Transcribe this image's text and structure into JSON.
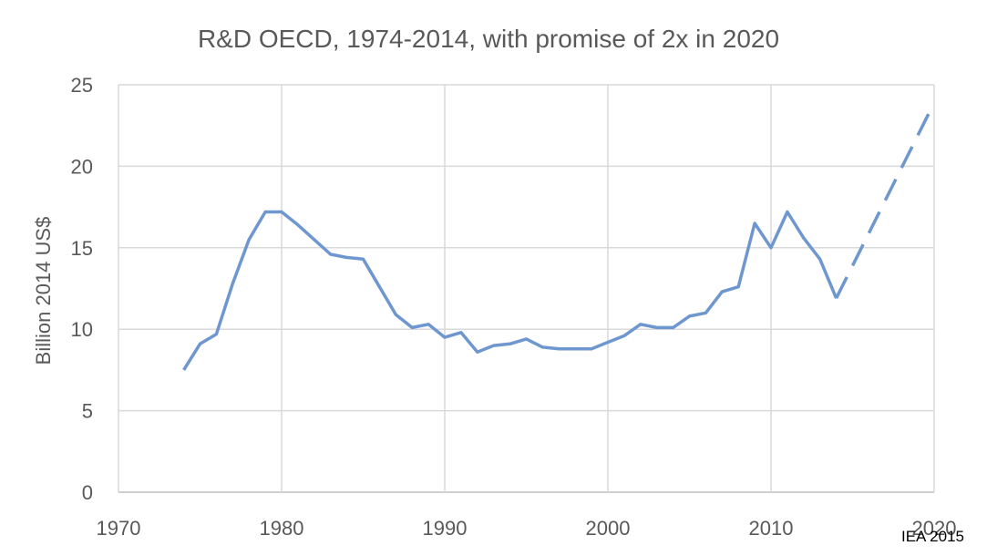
{
  "chart_data": {
    "type": "line",
    "title": "R&D OECD, 1974-2014, with promise of 2x in 2020",
    "xlabel": "",
    "ylabel": "Billion 2014 US$",
    "xlim": [
      1970,
      2020
    ],
    "ylim": [
      0,
      25
    ],
    "x_ticks": [
      "1970",
      "1980",
      "1990",
      "2000",
      "2010",
      "2020"
    ],
    "y_ticks": [
      "0",
      "5",
      "10",
      "15",
      "20",
      "25"
    ],
    "grid": true,
    "line_color": "#6f97cf",
    "grid_color": "#d9d9d9",
    "series": [
      {
        "style": "solid",
        "x": [
          1974,
          1975,
          1976,
          1977,
          1978,
          1979,
          1980,
          1981,
          1982,
          1983,
          1984,
          1985,
          1986,
          1987,
          1988,
          1989,
          1990,
          1991,
          1992,
          1993,
          1994,
          1995,
          1996,
          1997,
          1998,
          1999,
          2000,
          2001,
          2002,
          2003,
          2004,
          2005,
          2006,
          2007,
          2008,
          2009,
          2010,
          2011,
          2012,
          2013,
          2014
        ],
        "y": [
          7.5,
          9.1,
          9.7,
          12.8,
          15.5,
          17.2,
          17.2,
          16.4,
          15.5,
          14.6,
          14.4,
          14.3,
          12.6,
          10.9,
          10.1,
          10.3,
          9.5,
          9.8,
          8.6,
          9.0,
          9.1,
          9.4,
          8.9,
          8.8,
          8.8,
          8.8,
          9.2,
          9.6,
          10.3,
          10.1,
          10.1,
          10.8,
          11.0,
          12.3,
          12.6,
          16.5,
          15.0,
          17.2,
          15.6,
          14.3,
          11.9
        ]
      },
      {
        "style": "dashed",
        "x": [
          2014,
          2020
        ],
        "y": [
          11.9,
          23.9
        ]
      }
    ],
    "source_note": "IEA 2015"
  }
}
